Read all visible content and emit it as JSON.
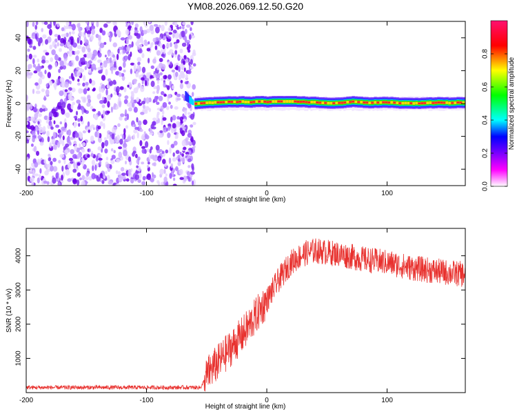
{
  "title": "YM08.2026.069.12.50.G20",
  "colors": {
    "snr_line": "#e8312e",
    "frame": "#000000"
  },
  "chart_data": [
    {
      "type": "heatmap",
      "name": "spectrogram",
      "xlabel": "Height of straight line (km)",
      "ylabel": "Frequency (Hz)",
      "xlim": [
        -200,
        165
      ],
      "ylim": [
        -50,
        50
      ],
      "xticks": [
        -200,
        -100,
        0,
        100
      ],
      "yticks": [
        -40,
        -20,
        0,
        20,
        40
      ],
      "noise_region_x": [
        -200,
        -60
      ],
      "signal_band_x": [
        -60,
        165
      ],
      "signal_frequency_hz": 0,
      "colorbar": {
        "label": "Normalized spectral amplitude",
        "range": [
          0,
          1
        ],
        "ticks": [
          "0.0",
          "0.2",
          "0.4",
          "0.6",
          "0.8"
        ],
        "tick_values": [
          0,
          0.2,
          0.4,
          0.6,
          0.8
        ]
      }
    },
    {
      "type": "line",
      "name": "snr",
      "xlabel": "Height of straight line (km)",
      "ylabel": "SNR (10 * v/v)",
      "xlim": [
        -200,
        165
      ],
      "ylim": [
        0,
        4800
      ],
      "xticks": [
        -200,
        -100,
        0,
        100
      ],
      "yticks": [
        1000,
        2000,
        3000,
        4000
      ],
      "series": [
        {
          "name": "SNR",
          "x": [
            -200,
            -150,
            -100,
            -55,
            -48,
            -40,
            -30,
            -20,
            -10,
            0,
            10,
            20,
            30,
            40,
            60,
            80,
            100,
            120,
            140,
            165
          ],
          "y": [
            150,
            150,
            150,
            150,
            600,
            900,
            1300,
            1700,
            2200,
            2700,
            3300,
            3800,
            4050,
            4150,
            4050,
            3900,
            3800,
            3650,
            3550,
            3450
          ]
        }
      ]
    }
  ]
}
